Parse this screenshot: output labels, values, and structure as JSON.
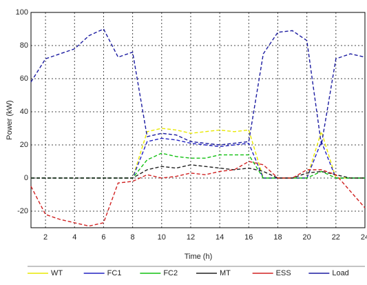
{
  "chart_data": {
    "type": "line",
    "xlabel": "Time (h)",
    "ylabel": "Power (kW)",
    "x": [
      1,
      2,
      3,
      4,
      5,
      6,
      7,
      8,
      9,
      10,
      11,
      12,
      13,
      14,
      15,
      16,
      17,
      18,
      19,
      20,
      21,
      22,
      23,
      24
    ],
    "xlim": [
      1,
      24
    ],
    "xticks": [
      2,
      4,
      6,
      8,
      10,
      12,
      14,
      16,
      18,
      20,
      22,
      24
    ],
    "ylim": [
      -30,
      100
    ],
    "yticks": [
      -20,
      0,
      20,
      40,
      60,
      80,
      100
    ],
    "grid": true,
    "series": [
      {
        "name": "WT",
        "color": "#e8e800",
        "values": [
          0,
          0,
          0,
          0,
          0,
          0,
          0,
          0,
          28,
          30,
          29,
          27,
          28,
          29,
          28,
          29,
          0,
          0,
          0,
          0,
          28,
          0,
          0,
          0
        ]
      },
      {
        "name": "FC1",
        "color": "#2020c0",
        "values": [
          0,
          0,
          0,
          0,
          0,
          0,
          0,
          0,
          22,
          24,
          23,
          21,
          20,
          19,
          20,
          21,
          0,
          0,
          0,
          0,
          22,
          0,
          0,
          0
        ]
      },
      {
        "name": "FC2",
        "color": "#10c010",
        "values": [
          0,
          0,
          0,
          0,
          0,
          0,
          0,
          0,
          11,
          15,
          13,
          12,
          12,
          14,
          14,
          14,
          0,
          0,
          0,
          0,
          4,
          0,
          0,
          0
        ]
      },
      {
        "name": "MT",
        "color": "#202020",
        "values": [
          0,
          0,
          0,
          0,
          0,
          0,
          0,
          0,
          5,
          7,
          6,
          8,
          7,
          6,
          5,
          6,
          4,
          0,
          0,
          3,
          4,
          2,
          0,
          0
        ]
      },
      {
        "name": "ESS",
        "color": "#d02020",
        "values": [
          -5,
          -22,
          -25,
          -27,
          -29,
          -27,
          -3,
          -2,
          2,
          0,
          1,
          3,
          2,
          4,
          5,
          10,
          8,
          0,
          0,
          5,
          5,
          2,
          -8,
          -18
        ]
      },
      {
        "name": "Load",
        "color": "#1a1aa0",
        "values": [
          58,
          72,
          75,
          78,
          86,
          90,
          73,
          76,
          25,
          27,
          26,
          22,
          21,
          20,
          21,
          22,
          75,
          88,
          89,
          83,
          20,
          72,
          75,
          73
        ]
      }
    ]
  }
}
